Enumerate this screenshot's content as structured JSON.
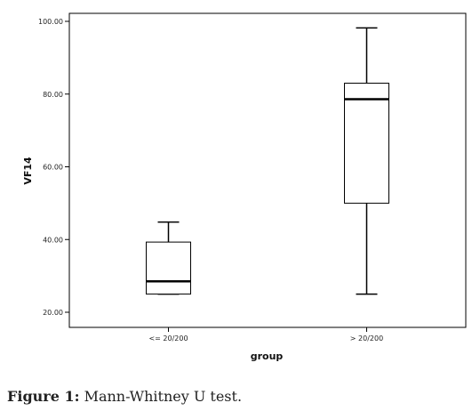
{
  "chart_data": {
    "type": "boxplot",
    "xlabel": "group",
    "ylabel": "VF14",
    "ylim": [
      20,
      100
    ],
    "yticks": [
      "20.00",
      "40.00",
      "60.00",
      "80.00",
      "100.00"
    ],
    "categories": [
      "<= 20/200",
      "> 20/200"
    ],
    "boxes": [
      {
        "category": "<= 20/200",
        "min": 25.0,
        "q1": 25.0,
        "median": 28.5,
        "q3": 39.3,
        "max": 44.8
      },
      {
        "category": "> 20/200",
        "min": 25.0,
        "q1": 50.0,
        "median": 78.6,
        "q3": 83.0,
        "max": 98.2
      }
    ],
    "grid": false
  },
  "caption": {
    "label": "Figure 1:",
    "text": "Mann-Whitney U test."
  }
}
